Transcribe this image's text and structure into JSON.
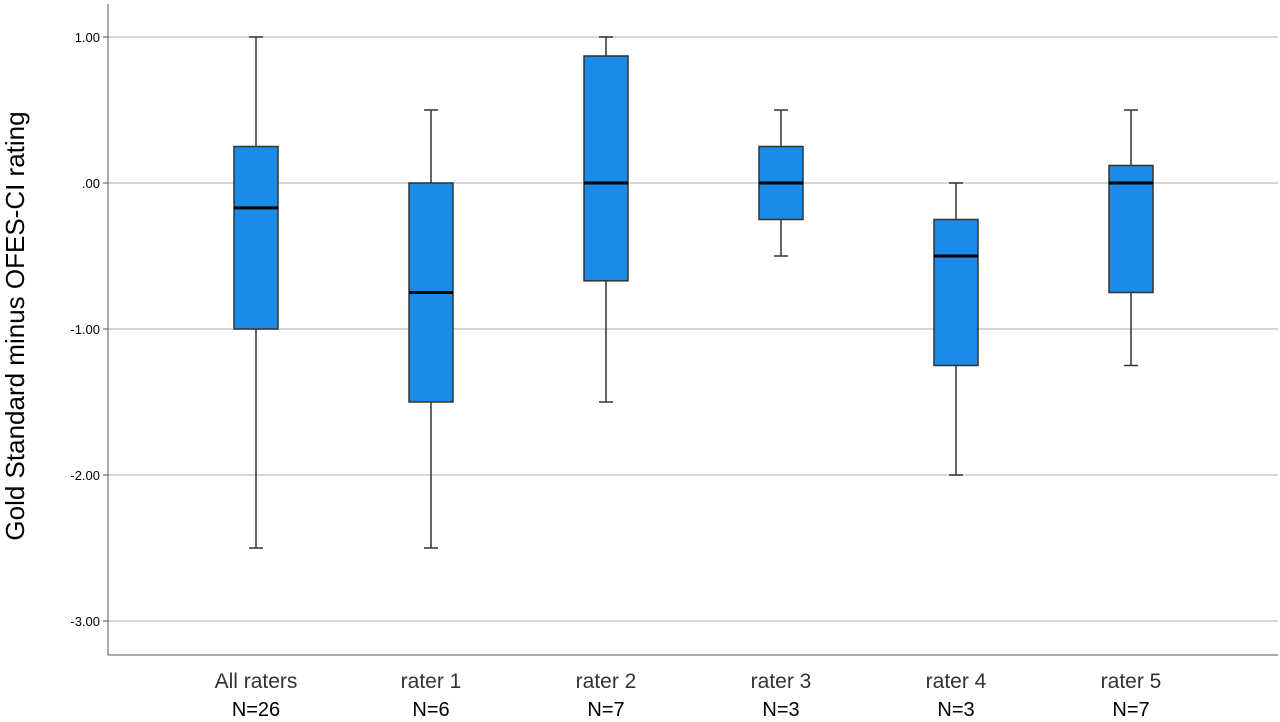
{
  "chart_data": {
    "type": "box",
    "title": "",
    "xlabel": "",
    "ylabel": "Gold Standard minus OFES-CI rating",
    "ylim": [
      -3.2,
      1.2
    ],
    "yticks": [
      1.0,
      0.0,
      -1.0,
      -2.0,
      -3.0
    ],
    "ytick_labels": [
      "1.00",
      ".00",
      "-1.00",
      "-2.00",
      "-3.00"
    ],
    "grid": true,
    "box_color": "#1a8be6",
    "categories": [
      "All raters",
      "rater 1",
      "rater 2",
      "rater 3",
      "rater 4",
      "rater 5"
    ],
    "counts": [
      "N=26",
      "N=6",
      "N=7",
      "N=3",
      "N=3",
      "N=7"
    ],
    "boxes": [
      {
        "min": -2.5,
        "q1": -1.0,
        "median": -0.17,
        "q3": 0.25,
        "max": 1.0
      },
      {
        "min": -2.5,
        "q1": -1.5,
        "median": -0.75,
        "q3": 0.0,
        "max": 0.5
      },
      {
        "min": -1.5,
        "q1": -0.67,
        "median": 0.0,
        "q3": 0.87,
        "max": 1.0
      },
      {
        "min": -0.5,
        "q1": -0.25,
        "median": 0.0,
        "q3": 0.25,
        "max": 0.5
      },
      {
        "min": -2.0,
        "q1": -1.25,
        "median": -0.5,
        "q3": -0.25,
        "max": 0.0
      },
      {
        "min": -1.25,
        "q1": -0.75,
        "median": 0.0,
        "q3": 0.12,
        "max": 0.5
      }
    ]
  }
}
